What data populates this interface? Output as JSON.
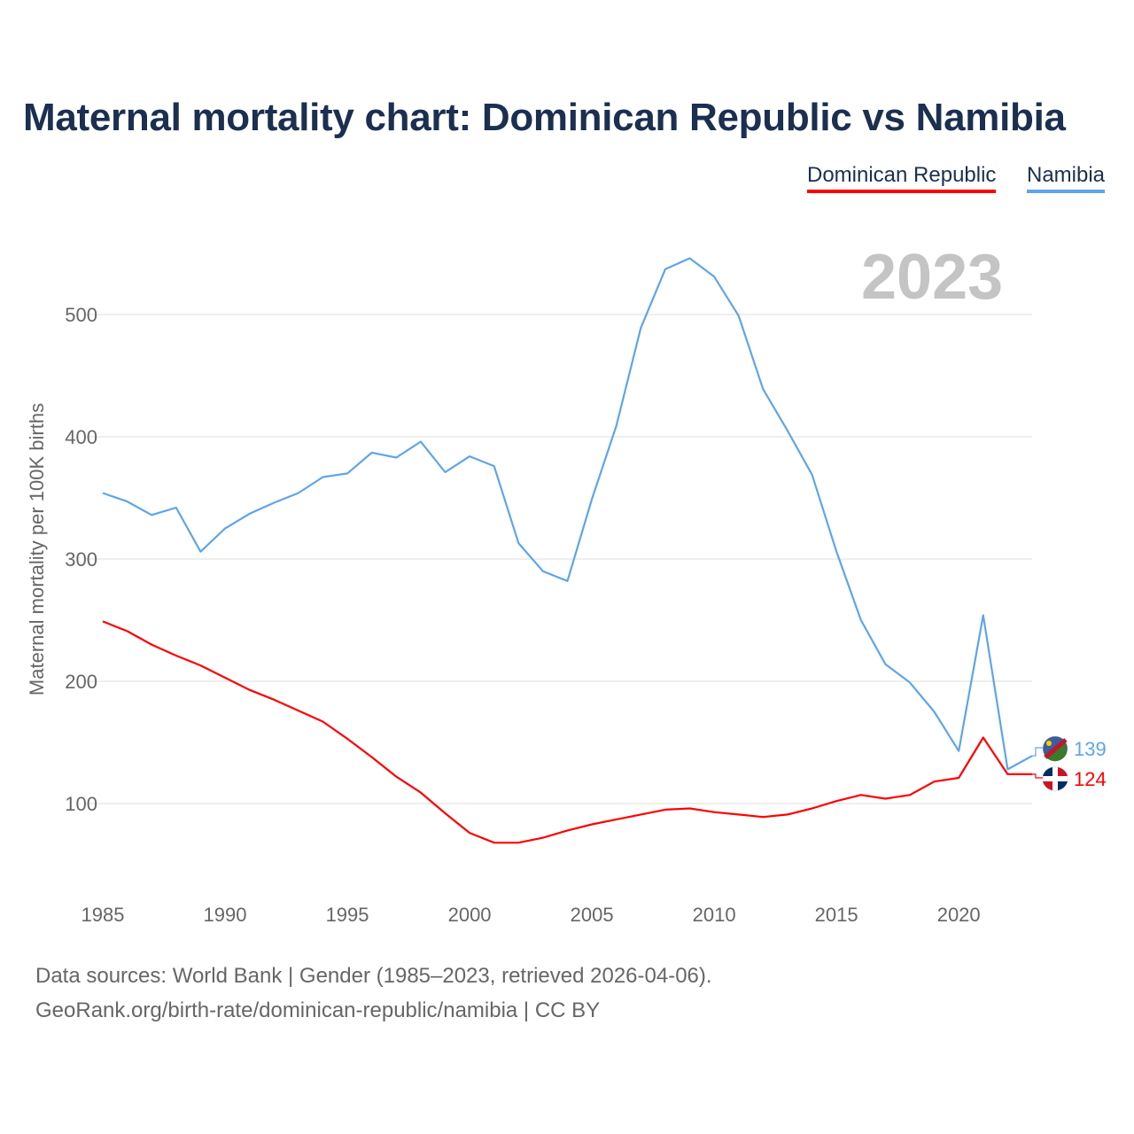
{
  "chart_data": {
    "type": "line",
    "title": "Maternal mortality chart: Dominican Republic vs Namibia",
    "ylabel": "Maternal mortality per 100K births",
    "xlabel": "",
    "year_overlay": "2023",
    "x": [
      1985,
      1986,
      1987,
      1988,
      1989,
      1990,
      1991,
      1992,
      1993,
      1994,
      1995,
      1996,
      1997,
      1998,
      1999,
      2000,
      2001,
      2002,
      2003,
      2004,
      2005,
      2006,
      2007,
      2008,
      2009,
      2010,
      2011,
      2012,
      2013,
      2014,
      2015,
      2016,
      2017,
      2018,
      2019,
      2020,
      2021,
      2022,
      2023
    ],
    "xticks": [
      "1985",
      "1990",
      "1995",
      "2000",
      "2005",
      "2010",
      "2015",
      "2020"
    ],
    "yticks": [
      "100",
      "200",
      "300",
      "400",
      "500"
    ],
    "xlim": [
      1985,
      2023
    ],
    "grid": true,
    "legend_placement": "top-right",
    "series": [
      {
        "name": "Dominican Republic",
        "color": "#ff0000",
        "end_label": "124",
        "values": [
          249,
          241,
          230,
          221,
          213,
          203,
          193,
          185,
          176,
          167,
          153,
          138,
          122,
          109,
          92,
          76,
          68,
          68,
          72,
          78,
          83,
          87,
          91,
          95,
          96,
          93,
          91,
          89,
          91,
          96,
          102,
          107,
          104,
          107,
          118,
          121,
          154,
          124,
          124
        ]
      },
      {
        "name": "Namibia",
        "color": "#5ea5ea",
        "end_label": "139",
        "values": [
          354,
          347,
          336,
          342,
          306,
          325,
          337,
          346,
          354,
          367,
          370,
          387,
          383,
          396,
          371,
          384,
          376,
          313,
          290,
          282,
          349,
          409,
          489,
          537,
          546,
          531,
          499,
          439,
          405,
          369,
          306,
          250,
          214,
          199,
          175,
          143,
          254,
          128,
          139
        ]
      }
    ]
  },
  "footer": {
    "line1": "Data sources: World Bank | Gender (1985–2023, retrieved 2026-04-06).",
    "line2": "GeoRank.org/birth-rate/dominican-republic/namibia | CC BY"
  }
}
